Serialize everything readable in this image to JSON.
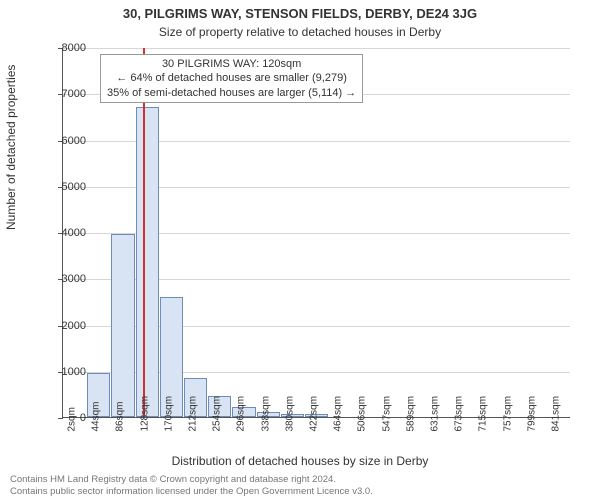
{
  "title": "30, PILGRIMS WAY, STENSON FIELDS, DERBY, DE24 3JG",
  "subtitle": "Size of property relative to detached houses in Derby",
  "chart": {
    "type": "histogram",
    "categories": [
      "2sqm",
      "44sqm",
      "86sqm",
      "128sqm",
      "170sqm",
      "212sqm",
      "254sqm",
      "296sqm",
      "338sqm",
      "380sqm",
      "422sqm",
      "464sqm",
      "506sqm",
      "547sqm",
      "589sqm",
      "631sqm",
      "673sqm",
      "715sqm",
      "757sqm",
      "799sqm",
      "841sqm"
    ],
    "values": [
      0,
      950,
      3950,
      6700,
      2600,
      850,
      450,
      220,
      110,
      70,
      60,
      0,
      0,
      0,
      0,
      0,
      0,
      0,
      0,
      0,
      0
    ],
    "bar_fill": "#d8e3f3",
    "bar_stroke": "#6f8bb8",
    "ylabel": "Number of detached properties",
    "xlabel": "Distribution of detached houses by size in Derby",
    "ylim": [
      0,
      8000
    ],
    "ytick_step": 1000,
    "grid_color": "#d7d7d7",
    "background": "#ffffff",
    "marker_x": 120,
    "marker_color": "#d03030",
    "label_fontsize": 12,
    "tick_fontsize": 11,
    "x_min": 2,
    "x_step": 42
  },
  "annotation": {
    "line1": "30 PILGRIMS WAY: 120sqm",
    "line2": "← 64% of detached houses are smaller (9,279)",
    "line3": "35% of semi-detached houses are larger (5,114) →"
  },
  "footer": {
    "line1": "Contains HM Land Registry data © Crown copyright and database right 2024.",
    "line2": "Contains public sector information licensed under the Open Government Licence v3.0."
  }
}
